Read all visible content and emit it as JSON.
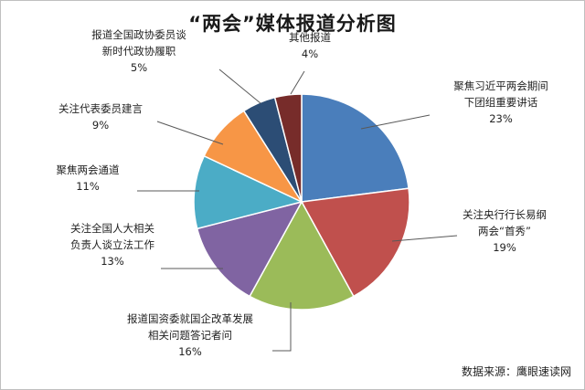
{
  "chart_data": {
    "type": "pie",
    "title": "“两会”媒体报道分析图",
    "source": "数据来源：鹰眼速读网",
    "slices": [
      {
        "label": [
          "聚焦习近平两会期间",
          "下团组重要讲话"
        ],
        "pct_label": "23%",
        "value": 23,
        "color": "#4a7ebb"
      },
      {
        "label": [
          "关注央行行长易纲",
          "两会“首秀”"
        ],
        "pct_label": "19%",
        "value": 19,
        "color": "#c0504d"
      },
      {
        "label": [
          "报道国资委就国企改革发展",
          "相关问题答记者问"
        ],
        "pct_label": "16%",
        "value": 16,
        "color": "#9bbb59"
      },
      {
        "label": [
          "关注全国人大相关",
          "负责人谈立法工作"
        ],
        "pct_label": "13%",
        "value": 13,
        "color": "#8064a2"
      },
      {
        "label": [
          "聚焦两会通道"
        ],
        "pct_label": "11%",
        "value": 11,
        "color": "#4bacc6"
      },
      {
        "label": [
          "关注代表委员建言"
        ],
        "pct_label": "9%",
        "value": 9,
        "color": "#f79646"
      },
      {
        "label": [
          "报道全国政协委员谈",
          "新时代政协履职"
        ],
        "pct_label": "5%",
        "value": 5,
        "color": "#2c4d75"
      },
      {
        "label": [
          "其他报道"
        ],
        "pct_label": "4%",
        "value": 4,
        "color": "#772c2a"
      }
    ]
  }
}
